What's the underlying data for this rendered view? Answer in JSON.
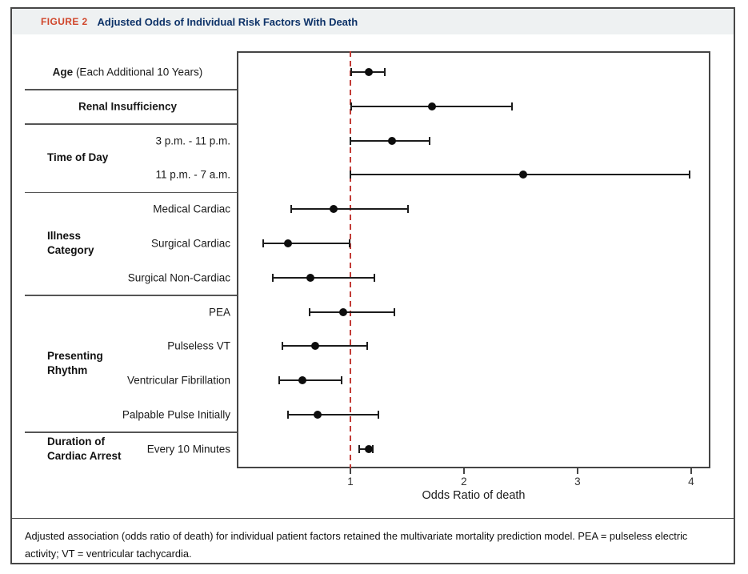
{
  "figure": {
    "label": "FIGURE 2",
    "title": "Adjusted Odds of Individual Risk Factors With Death",
    "caption": "Adjusted association (odds ratio of death) for individual patient factors retained the multivariate mortality prediction model. PEA = pulseless electric activity; VT = ventricular tachycardia.",
    "accent_color": "#d0452a",
    "title_color": "#0d3268",
    "header_bg": "#eef1f2"
  },
  "chart_data": {
    "type": "scatter",
    "subtype": "forest-plot",
    "xlabel": "Odds Ratio of death",
    "xlim": [
      0,
      4.17
    ],
    "xticks": [
      1,
      2,
      3,
      4
    ],
    "reference_line": {
      "x": 1,
      "style": "dashed",
      "color": "#c23b36"
    },
    "grid": false,
    "rows": [
      {
        "label_bold": "Age",
        "label": " (Each Additional 10 Years)",
        "align": "center",
        "or": 1.16,
        "ci": [
          1.01,
          1.3
        ]
      },
      {
        "label_bold": "Renal Insufficiency",
        "label": "",
        "align": "center",
        "or": 1.72,
        "ci": [
          1.01,
          2.42
        ]
      },
      {
        "label_bold": "",
        "label": "3 p.m. - 11 p.m.",
        "align": "right",
        "or": 1.37,
        "ci": [
          1.0,
          1.7
        ]
      },
      {
        "label_bold": "",
        "label": "11 p.m. - 7 a.m.",
        "align": "right",
        "or": 2.52,
        "ci": [
          1.0,
          3.99
        ]
      },
      {
        "label_bold": "",
        "label": "Medical Cardiac",
        "align": "right",
        "or": 0.85,
        "ci": [
          0.48,
          1.51
        ]
      },
      {
        "label_bold": "",
        "label": "Surgical Cardiac",
        "align": "right",
        "or": 0.45,
        "ci": [
          0.23,
          0.99
        ]
      },
      {
        "label_bold": "",
        "label": "Surgical Non-Cardiac",
        "align": "right",
        "or": 0.65,
        "ci": [
          0.32,
          1.21
        ]
      },
      {
        "label_bold": "",
        "label": "PEA",
        "align": "right",
        "or": 0.94,
        "ci": [
          0.64,
          1.39
        ]
      },
      {
        "label_bold": "",
        "label": "Pulseless VT",
        "align": "right",
        "or": 0.69,
        "ci": [
          0.4,
          1.15
        ]
      },
      {
        "label_bold": "",
        "label": "Ventricular Fibrillation",
        "align": "right",
        "or": 0.58,
        "ci": [
          0.37,
          0.92
        ]
      },
      {
        "label_bold": "",
        "label": "Palpable Pulse Initially",
        "align": "right",
        "or": 0.71,
        "ci": [
          0.45,
          1.25
        ]
      },
      {
        "label_bold": "",
        "label": "Every 10 Minutes",
        "align": "right",
        "or": 1.16,
        "ci": [
          1.08,
          1.2
        ]
      }
    ],
    "groups": [
      {
        "label": "Time of Day",
        "start": 2,
        "end": 3
      },
      {
        "label": "Illness\nCategory",
        "start": 4,
        "end": 6
      },
      {
        "label": "Presenting\nRhythm",
        "start": 7,
        "end": 10
      },
      {
        "label": "Duration of\nCardiac Arrest",
        "start": 11,
        "end": 11
      }
    ],
    "separators_after_rows": [
      0,
      1,
      3,
      6,
      10
    ]
  }
}
